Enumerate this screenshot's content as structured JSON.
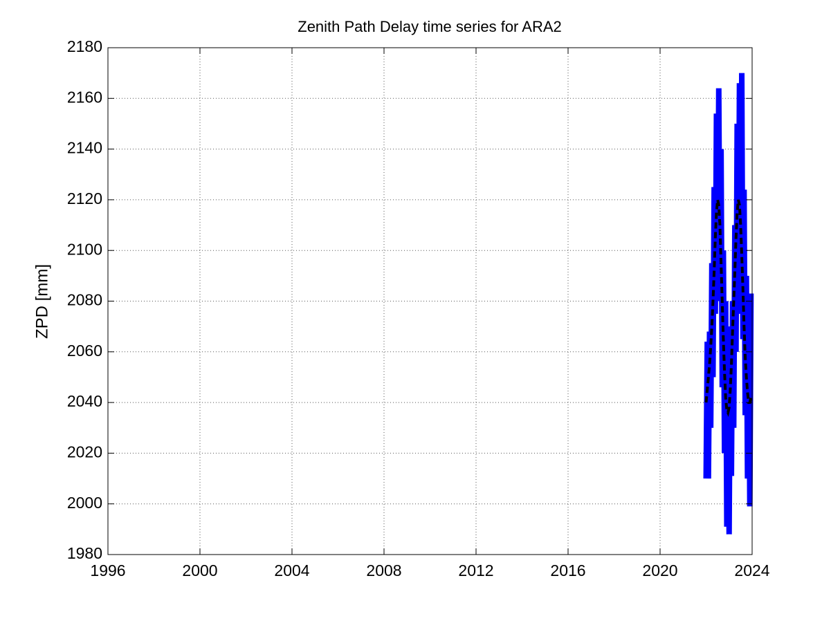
{
  "chart_data": {
    "type": "line",
    "title": "Zenith Path Delay time series for ARA2",
    "y_label": "ZPD [mm]",
    "xlim": [
      1996,
      2024
    ],
    "xticks": [
      1996,
      2000,
      2004,
      2008,
      2012,
      2016,
      2020,
      2024
    ],
    "ylim": [
      1980,
      2180
    ],
    "yticks": [
      1980,
      2000,
      2020,
      2040,
      2060,
      2080,
      2100,
      2120,
      2140,
      2160,
      2180
    ],
    "grid": true,
    "x": [
      2022.0,
      2022.05,
      2022.1,
      2022.15,
      2022.2,
      2022.25,
      2022.3,
      2022.35,
      2022.4,
      2022.45,
      2022.5,
      2022.55,
      2022.6,
      2022.65,
      2022.7,
      2022.75,
      2022.8,
      2022.85,
      2022.9,
      2022.95,
      2023.0,
      2023.05,
      2023.1,
      2023.15,
      2023.2,
      2023.25,
      2023.3,
      2023.35,
      2023.4,
      2023.45,
      2023.5,
      2023.55,
      2023.6,
      2023.65,
      2023.7,
      2023.75,
      2023.8,
      2023.85,
      2023.9,
      2023.95
    ],
    "series": [
      {
        "color": "#0000ff",
        "line_style": "solid",
        "values": [
          2010,
          2064,
          2010,
          2068,
          2030,
          2095,
          2050,
          2125,
          2075,
          2154,
          2090,
          2164,
          2080,
          2140,
          2046,
          2100,
          2020,
          2080,
          1991,
          2070,
          1988,
          2062,
          2011,
          2080,
          2030,
          2110,
          2060,
          2150,
          2075,
          2166,
          2080,
          2170,
          2065,
          2124,
          2035,
          2090,
          2010,
          2080,
          1999,
          2083
        ]
      },
      {
        "color": "#000000",
        "line_style": "dashed",
        "values": [
          2040,
          2045,
          2050,
          2055,
          2062,
          2070,
          2080,
          2092,
          2105,
          2115,
          2120,
          2118,
          2110,
          2095,
          2080,
          2065,
          2052,
          2042,
          2037,
          2036,
          2038,
          2045,
          2055,
          2068,
          2080,
          2092,
          2105,
          2115,
          2120,
          2118,
          2110,
          2098,
          2085,
          2070,
          2058,
          2050,
          2044,
          2040,
          2040,
          2042
        ]
      }
    ]
  }
}
